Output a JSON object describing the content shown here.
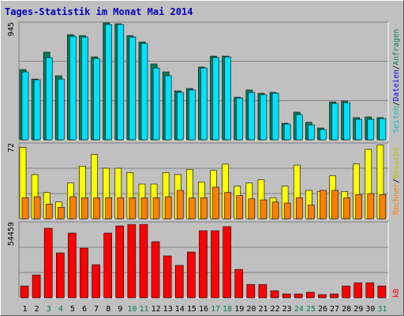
{
  "title": "Tages-Statistik im Monat Mai 2014",
  "legend_separator": "/",
  "categories": [
    "1",
    "2",
    "3",
    "4",
    "5",
    "6",
    "7",
    "8",
    "9",
    "10",
    "11",
    "12",
    "13",
    "14",
    "15",
    "16",
    "17",
    "18",
    "19",
    "20",
    "21",
    "22",
    "23",
    "24",
    "25",
    "26",
    "27",
    "28",
    "29",
    "30",
    "31"
  ],
  "category_colors": [
    "#000000",
    "#000000",
    "#00805c",
    "#00805c",
    "#000000",
    "#000000",
    "#000000",
    "#000000",
    "#000000",
    "#00805c",
    "#00805c",
    "#000000",
    "#000000",
    "#000000",
    "#000000",
    "#000000",
    "#00805c",
    "#00805c",
    "#000000",
    "#000000",
    "#000000",
    "#000000",
    "#000000",
    "#00805c",
    "#00805c",
    "#000000",
    "#000000",
    "#000000",
    "#000000",
    "#000000",
    "#00805c"
  ],
  "chart_data": [
    {
      "type": "bar",
      "ylim": [
        0,
        945
      ],
      "yticks": [
        945
      ],
      "legend": [
        {
          "name": "Anfragen",
          "color": "#00805c"
        },
        {
          "name": "Dateien",
          "color": "#0000ff"
        },
        {
          "name": "Seiten",
          "color": "#00c0c0"
        }
      ],
      "series": [
        {
          "color": "#00805c",
          "values": [
            564,
            488,
            704,
            514,
            844,
            837,
            666,
            939,
            932,
            837,
            786,
            609,
            545,
            393,
            412,
            584,
            672,
            672,
            342,
            400,
            374,
            381,
            133,
            222,
            140,
            95,
            304,
            311,
            178,
            184,
            178
          ]
        },
        {
          "color": "#00e0ff",
          "values": [
            545,
            482,
            660,
            488,
            831,
            825,
            653,
            926,
            926,
            825,
            774,
            577,
            514,
            381,
            400,
            577,
            660,
            666,
            336,
            381,
            362,
            374,
            127,
            203,
            120,
            82,
            292,
            298,
            165,
            165,
            171
          ]
        }
      ]
    },
    {
      "type": "bar",
      "ylim": [
        0,
        72
      ],
      "yticks": [
        72
      ],
      "legend": [
        {
          "name": "Besuche",
          "color": "#c0c000"
        },
        {
          "name": "Rechner",
          "color": "#ff8000"
        }
      ],
      "series": [
        {
          "color": "#ffff00",
          "values": [
            68,
            42,
            25,
            16,
            34,
            50,
            61,
            48,
            48,
            44,
            33,
            33,
            44,
            42,
            47,
            35,
            46,
            52,
            31,
            34,
            37,
            20,
            31,
            51,
            27,
            26,
            41,
            26,
            52,
            66,
            70
          ]
        },
        {
          "color": "#ff8000",
          "values": [
            20,
            21,
            14,
            11,
            21,
            20,
            20,
            20,
            20,
            20,
            20,
            20,
            21,
            27,
            20,
            20,
            30,
            25,
            22,
            19,
            18,
            16,
            15,
            20,
            13,
            27,
            27,
            20,
            23,
            24,
            23
          ]
        }
      ]
    },
    {
      "type": "bar",
      "ylim": [
        0,
        54459
      ],
      "yticks": [
        54459
      ],
      "legend": [
        {
          "name": "kB",
          "color": "#ff0000"
        }
      ],
      "series": [
        {
          "color": "#ff0000",
          "values": [
            8500,
            16400,
            49900,
            32300,
            46500,
            35700,
            23800,
            46500,
            51600,
            52700,
            52700,
            40300,
            30100,
            23300,
            32900,
            48200,
            48200,
            51100,
            20400,
            9600,
            9600,
            5100,
            2800,
            2800,
            4000,
            2300,
            2800,
            8500,
            10800,
            10800,
            8500
          ]
        }
      ]
    }
  ]
}
